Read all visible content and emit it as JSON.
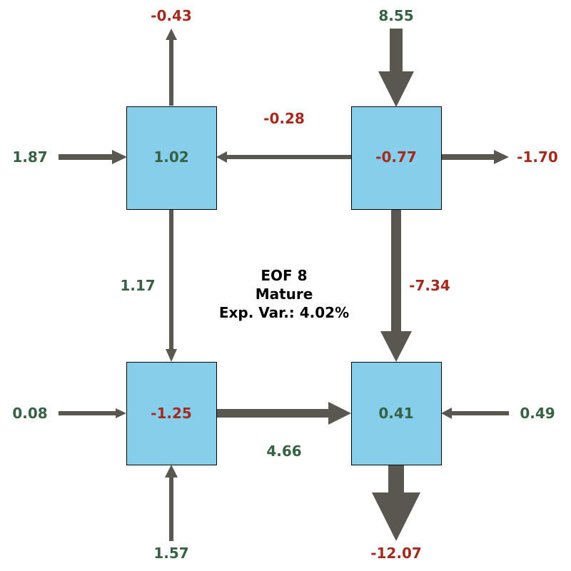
{
  "title": {
    "line1": "EOF 8",
    "line2": "Mature",
    "line3": "Exp. Var.: 4.02%"
  },
  "colors": {
    "box_fill": "#87CEEB",
    "arrow": "#5a5650",
    "positive": "#376143",
    "negative": "#a52a1e",
    "title": "#000000"
  },
  "boxes": {
    "top_left": "1.02",
    "top_right": "-0.77",
    "bottom_left": "-1.25",
    "bottom_right": "0.41"
  },
  "flows": {
    "top_left_up_out": "-0.43",
    "top_right_in_from_top": "8.55",
    "left_in_to_top_left": "1.87",
    "top_right_to_top_left": "-0.28",
    "top_right_right_out": "-1.70",
    "top_left_to_bottom_left": "1.17",
    "top_right_to_bottom_right": "-7.34",
    "left_in_to_bottom_left": "0.08",
    "bottom_left_to_bottom_right": "4.66",
    "right_in_to_bottom_right": "0.49",
    "bottom_in_to_bottom_left": "1.57",
    "bottom_right_down_out": "-12.07"
  }
}
